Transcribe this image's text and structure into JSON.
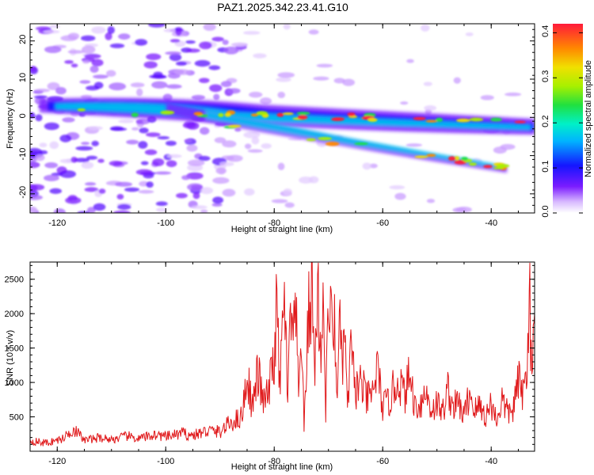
{
  "title": "PAZ1.2025.342.23.41.G10",
  "colors": {
    "frame": "#000000",
    "snr_line": "#e0191b",
    "background": "#ffffff"
  },
  "chart_data": [
    {
      "type": "heatmap",
      "title": "PAZ1.2025.342.23.41.G10",
      "xlabel": "Height of straight line (km)",
      "ylabel": "Frequency (Hz)",
      "xlim": [
        -125,
        -32
      ],
      "ylim": [
        -25,
        24.5
      ],
      "xticks": [
        -120,
        -100,
        -80,
        -60,
        -40
      ],
      "yticks": [
        -20,
        -10,
        0,
        10,
        20
      ],
      "colorbar": {
        "label": "Normalized spectral amplitude",
        "range": [
          0,
          0.42
        ],
        "ticks": [
          "0.0",
          "0.1",
          "0.2",
          "0.3",
          "0.4"
        ]
      },
      "features": [
        {
          "name": "main-band",
          "x_start": -125,
          "x_end": -32,
          "freq_start": 2,
          "freq_end": -2,
          "peak_amplitude": 0.42
        },
        {
          "name": "descending-band",
          "x_start": -105,
          "x_end": -42,
          "freq_start": 0,
          "freq_end": -12,
          "peak_amplitude": 0.35
        },
        {
          "name": "noise-region",
          "x_start": -125,
          "x_end": -85,
          "freq_start": -25,
          "freq_end": 24,
          "peak_amplitude": 0.08
        }
      ]
    },
    {
      "type": "line",
      "xlabel": "Height of straight line (km)",
      "ylabel": "SNR (10 * v/v)",
      "xlim": [
        -125,
        -32
      ],
      "ylim": [
        0,
        2750
      ],
      "xticks": [
        -120,
        -100,
        -80,
        -60,
        -40
      ],
      "yticks": [
        500,
        1000,
        1500,
        2000,
        2500
      ],
      "series": [
        {
          "name": "SNR",
          "x": [
            -125,
            -122,
            -119,
            -117,
            -115,
            -112,
            -110,
            -107,
            -105,
            -102,
            -100,
            -97,
            -95,
            -92,
            -90,
            -88,
            -86,
            -85,
            -84,
            -83,
            -82,
            -81,
            -80,
            -79.5,
            -79,
            -78.5,
            -78,
            -77.5,
            -77,
            -76.5,
            -76,
            -75.5,
            -75,
            -74.5,
            -74,
            -73.5,
            -73,
            -72.5,
            -72,
            -71.5,
            -71,
            -70.5,
            -70,
            -69.5,
            -69,
            -68.5,
            -68,
            -67.5,
            -67,
            -66.5,
            -66,
            -65,
            -64,
            -63,
            -62,
            -61,
            -60,
            -59,
            -58,
            -57,
            -56,
            -55,
            -54,
            -53,
            -52,
            -51,
            -50,
            -49,
            -48,
            -47,
            -46,
            -45,
            -44,
            -43,
            -42,
            -41,
            -40,
            -39,
            -38,
            -37,
            -36,
            -35,
            -34,
            -33.5,
            -33,
            -32.5,
            -32
          ],
          "y": [
            150,
            120,
            180,
            330,
            160,
            200,
            170,
            220,
            180,
            240,
            210,
            260,
            230,
            300,
            280,
            420,
            500,
            1100,
            650,
            1150,
            700,
            850,
            1400,
            2100,
            900,
            1700,
            2200,
            600,
            2100,
            1500,
            2050,
            700,
            1900,
            300,
            1400,
            2150,
            2400,
            1000,
            2750,
            1300,
            2350,
            600,
            2250,
            1800,
            2050,
            800,
            1950,
            1100,
            1850,
            500,
            1450,
            900,
            1000,
            750,
            800,
            1200,
            650,
            700,
            900,
            1050,
            800,
            1100,
            650,
            700,
            850,
            600,
            700,
            550,
            900,
            650,
            700,
            500,
            850,
            600,
            650,
            500,
            700,
            450,
            750,
            550,
            600,
            1000,
            850,
            1100,
            2550,
            900,
            2000
          ]
        }
      ]
    }
  ]
}
